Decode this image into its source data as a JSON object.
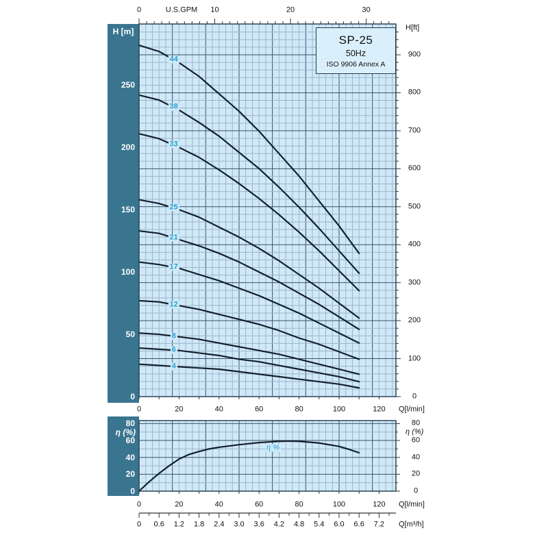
{
  "title_box": {
    "model": "SP-25",
    "frequency": "50Hz",
    "standard": "ISO 9906 Annex A"
  },
  "colors": {
    "band": "#3a7590",
    "plot_bg": "#cfe9f8",
    "titlebox_bg": "#daeffc",
    "grid_minor": "#9db5c9",
    "grid_major": "#3a5267",
    "curve": "#131f2b",
    "curve_label": "#2d9fd0",
    "border": "#2e4356",
    "tick": "#333333"
  },
  "axes": {
    "top": {
      "unit": "U.S.GPM",
      "ticks": [
        0,
        10,
        20,
        30
      ]
    },
    "left": {
      "unit": "H [m]",
      "ticks": [
        250,
        200,
        150,
        100,
        50,
        0
      ]
    },
    "right": {
      "unit": "H[ft]",
      "ticks": [
        900,
        800,
        700,
        600,
        500,
        400,
        300,
        200,
        100,
        0
      ]
    },
    "bottom_main": {
      "unit": "Q[l/min]",
      "ticks": [
        0,
        20,
        40,
        60,
        80,
        100,
        120
      ]
    },
    "eff_left": {
      "unit": "η (%)",
      "ticks": [
        80,
        60,
        40,
        20,
        0
      ]
    },
    "eff_right": {
      "unit": "η (%)",
      "ticks": [
        80,
        60,
        40,
        20,
        0
      ]
    },
    "bottom_eff": {
      "unit": "Q[l/min]",
      "ticks": [
        0,
        20,
        40,
        60,
        80,
        100,
        120
      ]
    },
    "m3h": {
      "unit": "Q[m³/h]",
      "ticks": [
        "0",
        "0.6",
        "1.2",
        "1.8",
        "2.4",
        "3.0",
        "3.6",
        "4.2",
        "4.8",
        "5.4",
        "6.0",
        "6.6",
        "7.2"
      ]
    }
  },
  "chart_data": [
    {
      "type": "line",
      "title": "SP-25 50Hz pump head curves",
      "xlabel": "Q[l/min]",
      "ylabel": "H [m]",
      "xlim": [
        0,
        128
      ],
      "ylim": [
        0,
        299
      ],
      "grid": true,
      "x": [
        0,
        10,
        20,
        30,
        40,
        50,
        60,
        70,
        80,
        90,
        100,
        110
      ],
      "series": [
        {
          "name": "44",
          "values": [
            282,
            277,
            268,
            257,
            243,
            229,
            213,
            195,
            177,
            157,
            137,
            115
          ]
        },
        {
          "name": "38",
          "values": [
            242,
            238,
            230,
            220,
            209,
            196,
            183,
            168,
            152,
            135,
            117,
            99
          ]
        },
        {
          "name": "33",
          "values": [
            211,
            207,
            200,
            192,
            182,
            171,
            159,
            146,
            132,
            117,
            101,
            85
          ]
        },
        {
          "name": "25",
          "values": [
            158,
            155,
            150,
            144,
            136,
            128,
            119,
            109,
            98,
            87,
            75,
            63
          ]
        },
        {
          "name": "21",
          "values": [
            133,
            131,
            126,
            121,
            115,
            108,
            100,
            92,
            83,
            74,
            64,
            54
          ]
        },
        {
          "name": "17",
          "values": [
            108,
            106,
            103,
            98,
            93,
            87,
            81,
            74,
            67,
            59,
            51,
            43
          ]
        },
        {
          "name": "12",
          "values": [
            77,
            76,
            73,
            70,
            66,
            62,
            58,
            53,
            47,
            42,
            36,
            30
          ]
        },
        {
          "name": "8",
          "values": [
            51,
            50,
            48,
            46,
            43,
            40,
            37,
            34,
            30,
            26,
            22,
            18
          ]
        },
        {
          "name": "6",
          "values": [
            39,
            38,
            37,
            35,
            33,
            30,
            28,
            25,
            22,
            19,
            16,
            12
          ]
        },
        {
          "name": "4",
          "values": [
            26,
            25,
            24,
            23,
            22,
            20,
            18,
            16,
            14,
            12,
            10,
            7
          ]
        }
      ],
      "label_at_q": 17
    },
    {
      "type": "line",
      "title": "Efficiency curve",
      "xlabel": "Q[l/min]",
      "ylabel": "η (%)",
      "xlim": [
        0,
        128
      ],
      "ylim": [
        0,
        86
      ],
      "grid": true,
      "x": [
        0,
        5,
        10,
        15,
        20,
        25,
        30,
        35,
        40,
        50,
        60,
        70,
        75,
        80,
        90,
        100,
        105,
        110
      ],
      "series": [
        {
          "name": "η %",
          "values": [
            0,
            11,
            21,
            30,
            38,
            43.5,
            47,
            50,
            52,
            55,
            57.5,
            59,
            59.3,
            59,
            57,
            53,
            49.5,
            45.5
          ]
        }
      ],
      "label_pos": {
        "q": 67,
        "pct": 51
      }
    }
  ]
}
